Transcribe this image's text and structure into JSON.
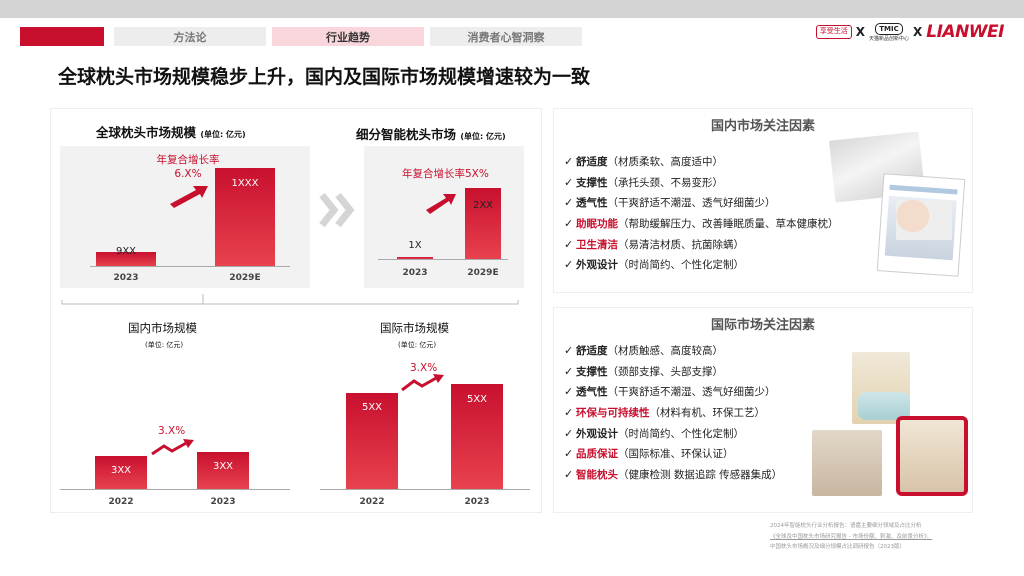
{
  "nav": {
    "tabs": [
      "方法论",
      "行业趋势",
      "消费者心智洞察"
    ],
    "logos": {
      "first": "享受生活",
      "x": "X",
      "tmic": "TMIC",
      "tmic_sub": "天猫新品创新中心",
      "brand": "LIANWEI"
    }
  },
  "page_title": "全球枕头市场规模稳步上升，国内及国际市场规模增速较为一致",
  "colors": {
    "accent": "#c8102e",
    "tab_active": "#f8d6db",
    "tab_inactive": "#ededed"
  },
  "chart_data": [
    {
      "type": "bar",
      "title": "全球枕头市场规模",
      "unit": "(单位: 亿元)",
      "categories": [
        "2023",
        "2029E"
      ],
      "value_labels": [
        "9XX",
        "1XXX"
      ],
      "annotation": [
        "年复合增长率",
        "6.X%"
      ]
    },
    {
      "type": "bar",
      "title": "细分智能枕头市场",
      "unit": "(单位: 亿元)",
      "categories": [
        "2023",
        "2029E"
      ],
      "value_labels": [
        "1X",
        "2XX"
      ],
      "annotation": [
        "年复合增长率5X%"
      ]
    },
    {
      "type": "bar",
      "title": "国内市场规模",
      "unit": "(单位: 亿元)",
      "categories": [
        "2022",
        "2023"
      ],
      "value_labels": [
        "3XX",
        "3XX"
      ],
      "annotation": [
        "3.X%"
      ]
    },
    {
      "type": "bar",
      "title": "国际市场规模",
      "unit": "(单位: 亿元)",
      "categories": [
        "2022",
        "2023"
      ],
      "value_labels": [
        "5XX",
        "5XX"
      ],
      "annotation": [
        "3.X%"
      ]
    }
  ],
  "domestic_factors": {
    "title": "国内市场关注因素",
    "items": [
      {
        "key": "舒适度",
        "desc": "（材质柔软、高度适中）",
        "highlight": false
      },
      {
        "key": "支撑性",
        "desc": "（承托头颈、不易变形）",
        "highlight": false
      },
      {
        "key": "透气性",
        "desc": "（干爽舒适不潮湿、透气好细菌少）",
        "highlight": false
      },
      {
        "key": "助眠功能",
        "desc": "（帮助缓解压力、改善睡眠质量、草本健康枕）",
        "highlight": true
      },
      {
        "key": "卫生清洁",
        "desc": "（易清洁材质、抗菌除螨）",
        "highlight": true
      },
      {
        "key": "外观设计",
        "desc": "（时尚简约、个性化定制）",
        "highlight": false
      }
    ]
  },
  "intl_factors": {
    "title": "国际市场关注因素",
    "items": [
      {
        "key": "舒适度",
        "desc": "（材质触感、高度较高）",
        "highlight": false
      },
      {
        "key": "支撑性",
        "desc": "（颈部支撑、头部支撑）",
        "highlight": false
      },
      {
        "key": "透气性",
        "desc": "（干爽舒适不潮湿、透气好细菌少）",
        "highlight": false
      },
      {
        "key": "环保与可持续性",
        "desc": "（材料有机、环保工艺）",
        "highlight": true
      },
      {
        "key": "外观设计",
        "desc": "（时尚简约、个性化定制）",
        "highlight": false
      },
      {
        "key": "品质保证",
        "desc": "（国际标准、环保认证）",
        "highlight": true
      },
      {
        "key": "智能枕头",
        "desc": "（健康检测  数据追踪  传感器集成）",
        "highlight": true
      }
    ]
  },
  "checkmark": "✓",
  "footnotes": [
    "2024年智能枕头行业分析报告：语嘉主要细分领域及占比分析",
    "《全球及中国枕头市场研究报告 - 市场份额、刺激、及前景分析》、",
    "中国枕头市场概况及细分规模占比调研报告（2023版）"
  ]
}
